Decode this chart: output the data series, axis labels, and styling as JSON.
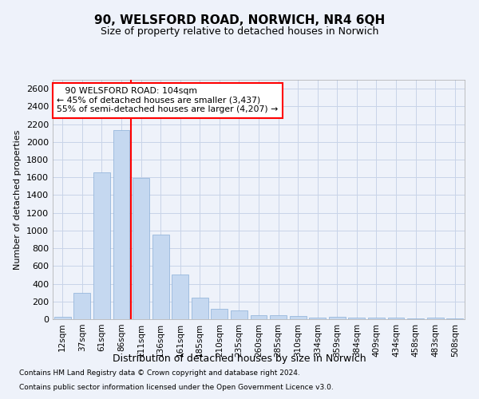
{
  "title": "90, WELSFORD ROAD, NORWICH, NR4 6QH",
  "subtitle": "Size of property relative to detached houses in Norwich",
  "xlabel": "Distribution of detached houses by size in Norwich",
  "ylabel": "Number of detached properties",
  "footnote1": "Contains HM Land Registry data © Crown copyright and database right 2024.",
  "footnote2": "Contains public sector information licensed under the Open Government Licence v3.0.",
  "annotation_line1": "   90 WELSFORD ROAD: 104sqm",
  "annotation_line2": "← 45% of detached houses are smaller (3,437)",
  "annotation_line3": "55% of semi-detached houses are larger (4,207) →",
  "bar_color": "#c5d8f0",
  "bar_edge_color": "#8ab0d8",
  "grid_color": "#c8d4e8",
  "marker_line_color": "red",
  "categories": [
    "12sqm",
    "37sqm",
    "61sqm",
    "86sqm",
    "111sqm",
    "136sqm",
    "161sqm",
    "185sqm",
    "210sqm",
    "235sqm",
    "260sqm",
    "285sqm",
    "310sqm",
    "334sqm",
    "359sqm",
    "384sqm",
    "409sqm",
    "434sqm",
    "458sqm",
    "483sqm",
    "508sqm"
  ],
  "values": [
    25,
    295,
    1660,
    2130,
    1590,
    955,
    500,
    245,
    120,
    100,
    45,
    45,
    35,
    20,
    25,
    20,
    20,
    20,
    5,
    20,
    5
  ],
  "ylim": [
    0,
    2700
  ],
  "yticks": [
    0,
    200,
    400,
    600,
    800,
    1000,
    1200,
    1400,
    1600,
    1800,
    2000,
    2200,
    2400,
    2600
  ],
  "marker_bin_index": 3.5,
  "background_color": "#eef2fa"
}
